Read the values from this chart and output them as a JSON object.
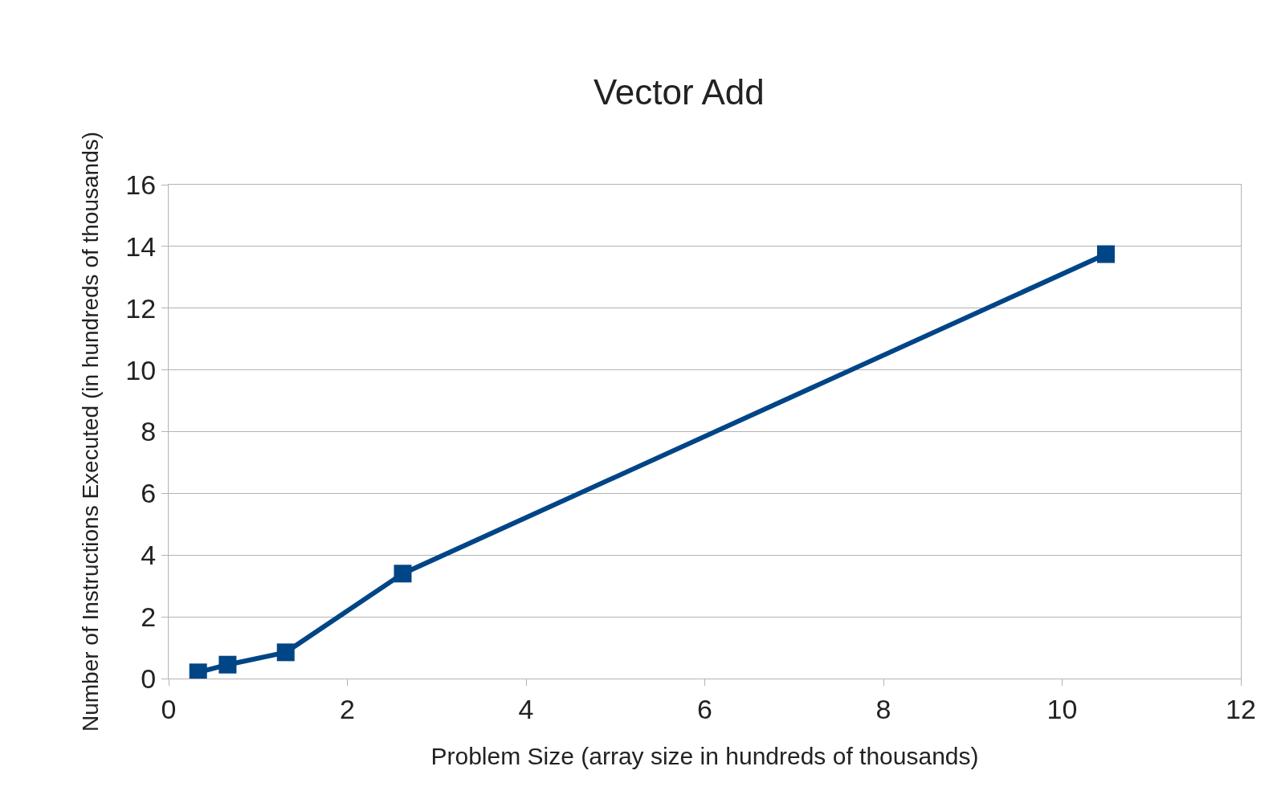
{
  "chart_data": {
    "type": "line",
    "title": "Vector Add",
    "xlabel": "Problem Size (array size in hundreds of thousands)",
    "ylabel": "Number of Instructions Executed (in hundreds of thousands)",
    "x": [
      0.33,
      0.66,
      1.31,
      2.62,
      10.49
    ],
    "series": [
      {
        "color": "#004586",
        "values": [
          0.2,
          0.45,
          0.85,
          3.4,
          13.75
        ]
      }
    ],
    "xlim": [
      0,
      12
    ],
    "xticks": [
      0,
      2,
      4,
      6,
      8,
      10,
      12
    ],
    "ylim": [
      0,
      16
    ],
    "yticks": [
      0,
      2,
      4,
      6,
      8,
      10,
      12,
      14,
      16
    ],
    "grid": "y",
    "marker": "square",
    "line_style": "solid"
  }
}
